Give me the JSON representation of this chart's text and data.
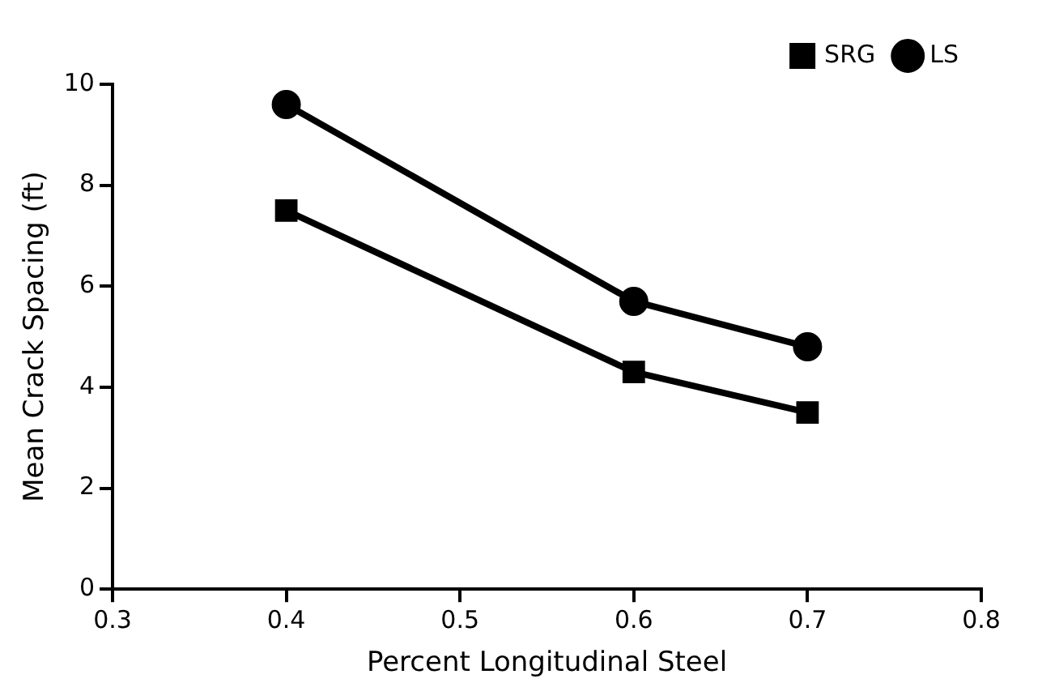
{
  "chart_data": {
    "type": "line",
    "xlabel": "Percent Longitudinal Steel",
    "ylabel": "Mean Crack Spacing (ft)",
    "x": [
      0.4,
      0.6,
      0.7
    ],
    "series": [
      {
        "name": "SRG",
        "color": "#000000",
        "marker": "square",
        "values": [
          7.5,
          4.3,
          3.5
        ]
      },
      {
        "name": "LS",
        "color": "#000000",
        "marker": "circle",
        "values": [
          9.6,
          5.7,
          4.8
        ]
      }
    ],
    "xlim": [
      0.3,
      0.8
    ],
    "xticks": [
      0.3,
      0.4,
      0.5,
      0.6,
      0.7,
      0.8
    ],
    "ylim": [
      0,
      10
    ],
    "yticks": [
      0,
      2,
      4,
      6,
      8,
      10
    ],
    "grid": false,
    "legend": "top right",
    "line_style": "solid"
  }
}
